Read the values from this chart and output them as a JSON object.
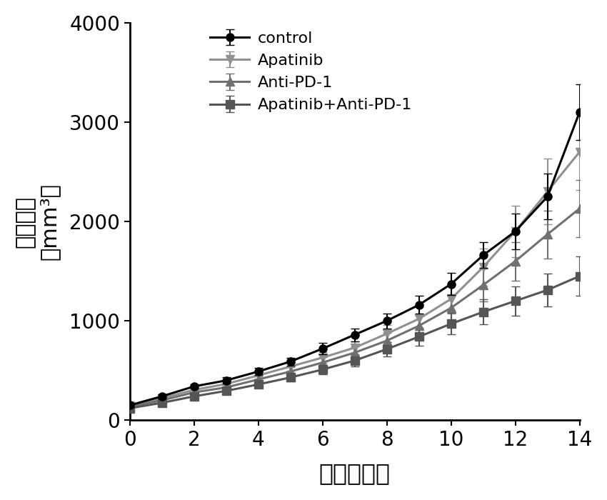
{
  "x": [
    0,
    1,
    2,
    3,
    4,
    5,
    6,
    7,
    8,
    9,
    10,
    11,
    12,
    13,
    14
  ],
  "control_y": [
    150,
    240,
    340,
    400,
    490,
    590,
    720,
    860,
    1000,
    1160,
    1370,
    1660,
    1900,
    2250,
    3100
  ],
  "control_err": [
    15,
    20,
    25,
    30,
    35,
    40,
    55,
    65,
    75,
    90,
    110,
    130,
    180,
    230,
    280
  ],
  "apatinib_y": [
    145,
    220,
    305,
    365,
    450,
    540,
    630,
    730,
    870,
    1020,
    1220,
    1540,
    1900,
    2300,
    2700
  ],
  "apatinib_err": [
    14,
    18,
    24,
    28,
    34,
    44,
    54,
    64,
    85,
    115,
    150,
    190,
    260,
    330,
    380
  ],
  "antipd1_y": [
    135,
    200,
    280,
    330,
    410,
    490,
    580,
    680,
    800,
    950,
    1130,
    1360,
    1600,
    1870,
    2130
  ],
  "antipd1_err": [
    13,
    17,
    22,
    27,
    33,
    42,
    52,
    62,
    82,
    105,
    135,
    165,
    195,
    240,
    290
  ],
  "combo_y": [
    120,
    175,
    240,
    295,
    360,
    430,
    510,
    600,
    715,
    840,
    970,
    1090,
    1200,
    1310,
    1450
  ],
  "combo_err": [
    11,
    16,
    20,
    26,
    32,
    38,
    48,
    58,
    72,
    88,
    108,
    128,
    148,
    168,
    195
  ],
  "control_color": "#000000",
  "apatinib_color": "#909090",
  "antipd1_color": "#707070",
  "combo_color": "#555555",
  "xlabel": "时间（天）",
  "ylabel_line1": "肿瘤体积",
  "ylabel_line2": "（mm³）",
  "xlim": [
    0,
    14
  ],
  "ylim": [
    0,
    4000
  ],
  "yticks": [
    0,
    1000,
    2000,
    3000,
    4000
  ],
  "xticks": [
    0,
    2,
    4,
    6,
    8,
    10,
    12,
    14
  ],
  "legend_labels": [
    "control",
    "Apatinib",
    "Anti-PD-1",
    "Apatinib+Anti-PD-1"
  ],
  "bg_color": "#ffffff",
  "linewidth": 2.2,
  "markersize": 8,
  "capsize": 4,
  "elinewidth": 1.5
}
